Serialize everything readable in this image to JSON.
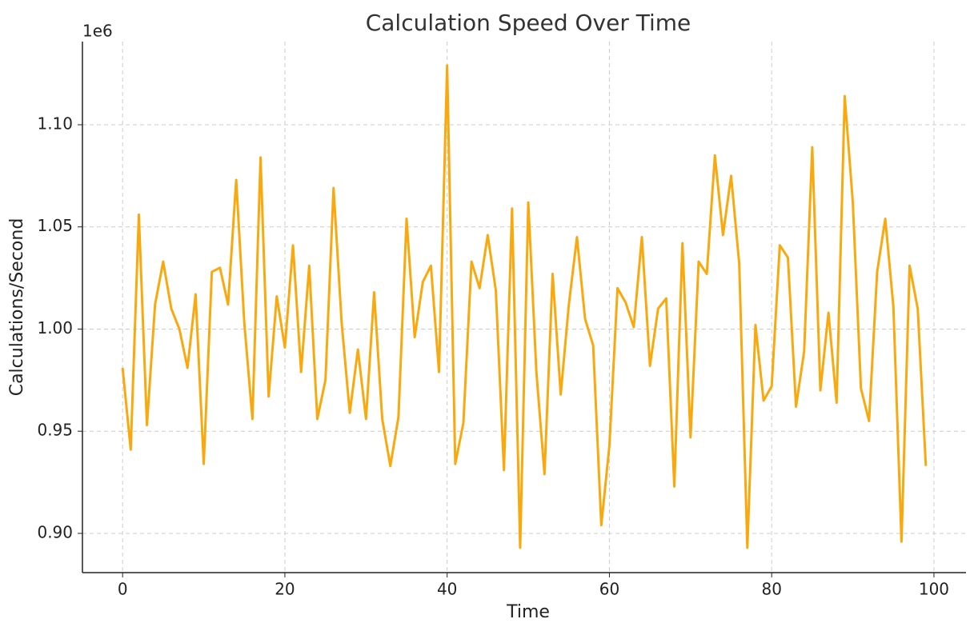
{
  "chart_data": {
    "type": "line",
    "title": "Calculation Speed Over Time",
    "x_label": "Time",
    "y_label": "Calculations/Second",
    "y_multiplier": "1e6",
    "x": [
      0,
      1,
      2,
      3,
      4,
      5,
      6,
      7,
      8,
      9,
      10,
      11,
      12,
      13,
      14,
      15,
      16,
      17,
      18,
      19,
      20,
      21,
      22,
      23,
      24,
      25,
      26,
      27,
      28,
      29,
      30,
      31,
      32,
      33,
      34,
      35,
      36,
      37,
      38,
      39,
      40,
      41,
      42,
      43,
      44,
      45,
      46,
      47,
      48,
      49,
      50,
      51,
      52,
      53,
      54,
      55,
      56,
      57,
      58,
      59,
      60,
      61,
      62,
      63,
      64,
      65,
      66,
      67,
      68,
      69,
      70,
      71,
      72,
      73,
      74,
      75,
      76,
      77,
      78,
      79,
      80,
      81,
      82,
      83,
      84,
      85,
      86,
      87,
      88,
      89,
      90,
      91,
      92,
      93,
      94,
      95,
      96,
      97,
      98,
      99
    ],
    "series": [
      {
        "color": "#f9a90e",
        "values": [
          0.981,
          0.941,
          1.056,
          0.953,
          1.012,
          1.033,
          1.01,
          1.0,
          0.981,
          1.017,
          0.934,
          1.028,
          1.03,
          1.012,
          1.073,
          1.003,
          0.956,
          1.084,
          0.967,
          1.016,
          0.991,
          1.041,
          0.979,
          1.031,
          0.956,
          0.975,
          1.069,
          1.003,
          0.959,
          0.99,
          0.956,
          1.018,
          0.956,
          0.933,
          0.957,
          1.054,
          0.996,
          1.023,
          1.031,
          0.979,
          1.129,
          0.934,
          0.954,
          1.033,
          1.02,
          1.046,
          1.019,
          0.931,
          1.059,
          0.893,
          1.062,
          0.979,
          0.929,
          1.027,
          0.968,
          1.012,
          1.045,
          1.005,
          0.992,
          0.904,
          0.943,
          1.02,
          1.013,
          1.001,
          1.045,
          0.982,
          1.01,
          1.015,
          0.923,
          1.042,
          0.947,
          1.033,
          1.027,
          1.085,
          1.046,
          1.075,
          1.032,
          0.893,
          1.002,
          0.965,
          0.972,
          1.041,
          1.035,
          0.962,
          0.989,
          1.089,
          0.97,
          1.008,
          0.964,
          1.114,
          1.062,
          0.971,
          0.955,
          1.028,
          1.054,
          1.011,
          0.896,
          1.031,
          1.01,
          0.933
        ]
      }
    ],
    "xlim": [
      -4.95,
      103.95
    ],
    "xticks": [
      0,
      20,
      40,
      60,
      80,
      100
    ],
    "ylim": [
      0.8808,
      1.1407
    ],
    "yticks": [
      {
        "value": 0.9,
        "label": "0.90"
      },
      {
        "value": 0.95,
        "label": "0.95"
      },
      {
        "value": 1.0,
        "label": "1.00"
      },
      {
        "value": 1.05,
        "label": "1.05"
      },
      {
        "value": 1.1,
        "label": "1.10"
      }
    ],
    "grid": true
  }
}
